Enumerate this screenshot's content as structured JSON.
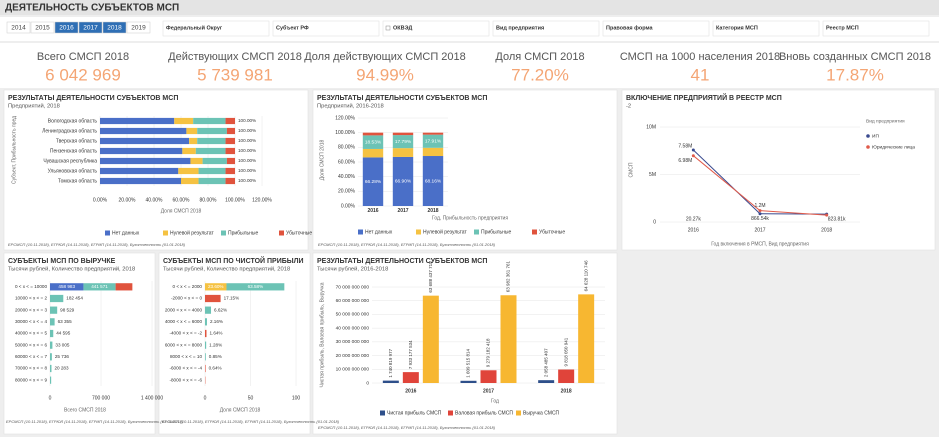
{
  "header": {
    "title": "ДЕЯТЕЛЬНОСТЬ СУБЪЕКТОВ МСП"
  },
  "years": {
    "options": [
      "2014",
      "2015",
      "2016",
      "2017",
      "2018",
      "2019"
    ],
    "selected": [
      2,
      3,
      4
    ],
    "selected_color": "#2f6fb5"
  },
  "filters": [
    "Федеральный Округ",
    "Субъект РФ",
    "ОКВЭД",
    "Вид предприятия",
    "Правовая форма",
    "Категория МСП",
    "Реестр МСП"
  ],
  "kpis": [
    {
      "label": "Всего СМСП 2018",
      "value": "6 042 969"
    },
    {
      "label": "Действующих СМСП 2018",
      "value": "5 739 981"
    },
    {
      "label": "Доля действующих СМСП 2018",
      "value": "94.99%"
    },
    {
      "label": "Доля СМСП 2018",
      "value": "77.20%"
    },
    {
      "label": "СМСП на 1000 населения 2018",
      "value": "41"
    },
    {
      "label": "Вновь созданных СМСП 2018",
      "value": "17.87%"
    }
  ],
  "source": "ЕРСМСП (10.11.2018), ЕГРЮЛ (14.11.2018), ЕГРИП (14.11.2018), Бухотчетность (01.01.2018)",
  "charts": [
    {
      "type": "hstack",
      "title": "РЕЗУЛЬТАТЫ ДЕЯТЕЛЬНОСТИ СУБЪЕКТОВ МСП",
      "subtitle": "Предприятий, 2018",
      "categories": [
        "Вологодская область",
        "Ленинградская область",
        "Тверская область",
        "Пензенская область",
        "Чувашская республика",
        "Ульяновская область",
        "Томская область"
      ],
      "series": [
        {
          "name": "Нет данных",
          "color": "#4a6fc8",
          "values": [
            55,
            64,
            66,
            61,
            67,
            58,
            60
          ]
        },
        {
          "name": "Нулевой результат",
          "color": "#f5c242",
          "values": [
            14,
            8,
            6,
            10,
            9,
            15,
            13
          ]
        },
        {
          "name": "Прибыльные",
          "color": "#6cc3b5",
          "values": [
            24,
            22,
            21,
            22,
            18,
            20,
            20
          ]
        },
        {
          "name": "Убыточные",
          "color": "#e0533d",
          "values": [
            7,
            6,
            7,
            7,
            6,
            7,
            7
          ]
        }
      ],
      "total_labels": [
        "100.00%",
        "100.00%",
        "100.00%",
        "100.00%",
        "100.00%",
        "100.00%",
        "100.00%"
      ],
      "xlim": [
        0,
        120
      ],
      "xticks": [
        {
          "value": 0,
          "label": "0.00%"
        },
        {
          "value": 20,
          "label": "20.00%"
        },
        {
          "value": 40,
          "label": "40.00%"
        },
        {
          "value": 60,
          "label": "60.00%"
        },
        {
          "value": 80,
          "label": "80.00%"
        },
        {
          "value": 100,
          "label": "100.00%"
        },
        {
          "value": 120,
          "label": "120.00%"
        }
      ],
      "x_label": "Доля СМСП 2018",
      "y_label": "Субъект, Прибыльность пред",
      "grid": true
    },
    {
      "type": "vstack",
      "title": "РЕЗУЛЬТАТЫ ДЕЯТЕЛЬНОСТИ СУБЪЕКТОВ МСП",
      "subtitle": "Предприятий, 2016-2018",
      "categories": [
        "2016",
        "2017",
        "2018"
      ],
      "series": [
        {
          "name": "Нет данных",
          "color": "#4a6fc8",
          "values": [
            66.28,
            66.9,
            68.16
          ],
          "value_labels": [
            "66.28%",
            "66.90%",
            "68.16%"
          ]
        },
        {
          "name": "Нулевой результат",
          "color": "#f5c242",
          "values": [
            11.5,
            12,
            11.2
          ]
        },
        {
          "name": "Прибыльные",
          "color": "#6cc3b5",
          "values": [
            18.53,
            17.79,
            17.91
          ],
          "value_labels": [
            "18.53%",
            "17.79%",
            "17.91%"
          ]
        },
        {
          "name": "Убыточные",
          "color": "#e0533d",
          "values": [
            3.69,
            3.31,
            2.73
          ]
        }
      ],
      "ylim": [
        0,
        120
      ],
      "yticks": [
        {
          "value": 0,
          "label": "0.00%"
        },
        {
          "value": 20,
          "label": "20.00%"
        },
        {
          "value": 40,
          "label": "40.00%"
        },
        {
          "value": 60,
          "label": "60.00%"
        },
        {
          "value": 80,
          "label": "80.00%"
        },
        {
          "value": 100,
          "label": "100.00%"
        },
        {
          "value": 120,
          "label": "120.00%"
        }
      ],
      "x_label": "Год, Прибыльность предприятия",
      "y_label": "Доля СМСП 2018",
      "grid": true
    },
    {
      "type": "line",
      "title": "ВКЛЮЧЕНИЕ ПРЕДПРИЯТИЙ В РЕЕСТР МСП",
      "subtitle": "-2",
      "categories": [
        "2016",
        "2017",
        "2018"
      ],
      "series": [
        {
          "name": "ИП",
          "color": "#3a4a8f",
          "values": [
            7580000,
            866540,
            823810
          ],
          "value_labels": [
            "7.58M",
            "866.54k",
            "823.81k"
          ]
        },
        {
          "name": "Юридические лица",
          "color": "#e05a4a",
          "values": [
            6980000,
            1200000,
            720000
          ],
          "value_labels": [
            "6.98M",
            "1.2M",
            null
          ]
        }
      ],
      "annotations": [
        "20.27k"
      ],
      "legend_title": "Вид предприятия",
      "ylim": [
        0,
        10000000
      ],
      "yticks": [
        0,
        {
          "value": 5000000,
          "label": "5M"
        },
        {
          "value": 10000000,
          "label": "10M"
        }
      ],
      "x_label": "Год включения в РМСП, Вид предприятия",
      "y_label": "СМСП",
      "grid": true
    },
    {
      "type": "hstack",
      "title": "СУБЪЕКТЫ МСП ПО ВЫРУЧКЕ",
      "subtitle": "Тысячи рублей, Количество предприятий, 2018",
      "categories": [
        "0 < x < = 10000",
        "10000 < x < = 2",
        "20000 < x < = 3",
        "30000 < x < = 4",
        "40000 < x < = 5",
        "50000 < x < = 6",
        "60000 < x < = 7",
        "70000 < x < = 8",
        "80000 < x < = 9"
      ],
      "series": [
        {
          "color": "#4a6fc8",
          "values": [
            458983,
            null,
            null,
            null,
            null,
            null,
            null,
            null,
            null
          ],
          "value_labels": [
            "458 983",
            null,
            null,
            null,
            null,
            null,
            null,
            null,
            null
          ]
        },
        {
          "color": "#6cc3b5",
          "values": [
            441571,
            182454,
            98529,
            63355,
            44595,
            33005,
            25736,
            20283,
            16000
          ],
          "value_labels": [
            "441 571",
            "182 454",
            "98 529",
            "63 355",
            "44 595",
            "33 005",
            "25 736",
            "20 283",
            null
          ]
        },
        {
          "color": "#e0533d",
          "values": [
            230000,
            null,
            null,
            null,
            null,
            null,
            null,
            null,
            null
          ]
        }
      ],
      "xlim": [
        0,
        1400000
      ],
      "xticks": [
        0,
        {
          "value": 700000,
          "label": "700 000"
        },
        {
          "value": 1400000,
          "label": "1 400 000"
        }
      ],
      "x_label": "Всего СМСП 2018",
      "grid": true
    },
    {
      "type": "hstack",
      "title": "СУБЪЕКТЫ МСП ПО ЧИСТОЙ ПРИБЫЛИ",
      "subtitle": "Тысячи рублей, Количество предприятий, 2018",
      "categories": [
        "0 < x < = 2000",
        "-2000 < x < = 0",
        "2000 < x < = 4000",
        "4000 < x < = 6000",
        "-4000 < x < = -2",
        "6000 < x < = 8000",
        "8000 < x < = 10",
        "-6000 < x < = -4",
        "-8000 < x < = -6"
      ],
      "series": [
        {
          "color": "#f5c242",
          "values": [
            23.6,
            null,
            null,
            null,
            null,
            null,
            null,
            null,
            null
          ],
          "value_labels": [
            "23.60%",
            null,
            null,
            null,
            null,
            null,
            null,
            null,
            null
          ]
        },
        {
          "color": "#6cc3b5",
          "values": [
            63.58,
            null,
            6.62,
            2.16,
            null,
            1.28,
            0.85,
            null,
            null
          ],
          "value_labels": [
            "63.58%",
            null,
            "6.62%",
            "2.16%",
            null,
            "1.28%",
            "0.85%",
            null,
            null
          ]
        },
        {
          "color": "#e0533d",
          "values": [
            null,
            17.15,
            null,
            null,
            1.64,
            null,
            null,
            0.64,
            0.4
          ],
          "value_labels": [
            null,
            "17.15%",
            null,
            null,
            "1.64%",
            null,
            null,
            "0.64%",
            null
          ]
        }
      ],
      "xlim": [
        0,
        100
      ],
      "xticks": [
        0,
        50,
        100
      ],
      "x_label": "Доля СМСП 2018",
      "grid": true
    },
    {
      "type": "group",
      "title": "РЕЗУЛЬТАТЫ ДЕЯТЕЛЬНОСТИ СУБЪЕКТОВ МСП",
      "subtitle": "Тысячи рублей, 2016-2018",
      "categories": [
        "2016",
        "2017",
        "2018"
      ],
      "series": [
        {
          "name": "Чистая прибыль СМСП",
          "color": "#2e4f8a",
          "values": [
            1740819977,
            1609515814,
            2058485407
          ],
          "value_labels": [
            "1 740 819 977",
            "1 609 515 814",
            "2 058 485 407"
          ]
        },
        {
          "name": "Валовая прибыль СМСП",
          "color": "#e0443a",
          "values": [
            7933177534,
            9279182418,
            9818050941
          ],
          "value_labels": [
            "7 933 177 534",
            "9 279 182 418",
            "9 818 050 941"
          ]
        },
        {
          "name": "Выручка СМСП",
          "color": "#f7b731",
          "values": [
            63688437715,
            63982361761,
            64628110746
          ],
          "value_labels": [
            "63 688 437 715",
            "63 982 361 761",
            "64 628 110 746"
          ]
        }
      ],
      "ylim": [
        0,
        70000000000
      ],
      "yticks": [
        0,
        {
          "value": 10000000000,
          "label": "10 000 000 000"
        },
        {
          "value": 20000000000,
          "label": "20 000 000 000"
        },
        {
          "value": 30000000000,
          "label": "30 000 000 000"
        },
        {
          "value": 40000000000,
          "label": "40 000 000 000"
        },
        {
          "value": 50000000000,
          "label": "50 000 000 000"
        },
        {
          "value": 60000000000,
          "label": "60 000 000 000"
        },
        {
          "value": 70000000000,
          "label": "70 000 000 000"
        }
      ],
      "x_label": "Год",
      "y_label": "Чистая прибыль, Валовая прибыль, Выручка",
      "grid": true
    }
  ]
}
